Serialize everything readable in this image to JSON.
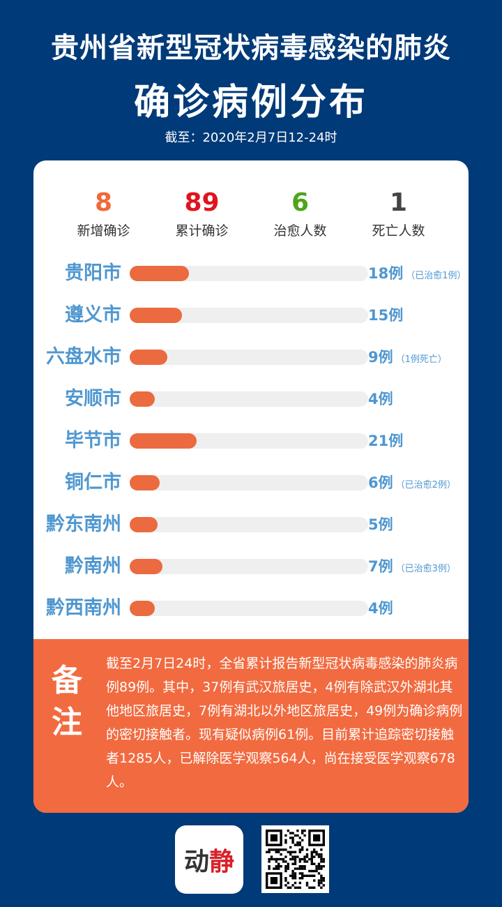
{
  "header": {
    "title_line1": "贵州省新型冠状病毒感染的肺炎",
    "title_line2": "确诊病例分布",
    "as_of": "截至：2020年2月7日12-24时"
  },
  "stats": [
    {
      "value": "8",
      "label": "新增确诊",
      "color": "#f06a3a"
    },
    {
      "value": "89",
      "label": "累计确诊",
      "color": "#e0141e"
    },
    {
      "value": "6",
      "label": "治愈人数",
      "color": "#4ea51b"
    },
    {
      "value": "1",
      "label": "死亡人数",
      "color": "#444444"
    }
  ],
  "chart_data": {
    "type": "bar",
    "orientation": "horizontal",
    "categories": [
      "贵阳市",
      "遵义市",
      "六盘水市",
      "安顺市",
      "毕节市",
      "铜仁市",
      "黔东南州",
      "黔南州",
      "黔西南州"
    ],
    "values": [
      18,
      15,
      9,
      4,
      21,
      6,
      5,
      7,
      4
    ],
    "value_labels": [
      "18例",
      "15例",
      "9例",
      "4例",
      "21例",
      "6例",
      "5例",
      "7例",
      "4例"
    ],
    "notes": [
      "（已治愈1例）",
      "",
      "（1例死亡）",
      "",
      "",
      "（已治愈2例）",
      "",
      "（已治愈3例）",
      ""
    ],
    "bar_color": "#ec6a3f",
    "track_color": "#efefef",
    "label_color": "#4f97d0"
  },
  "remark": {
    "heading": "备注",
    "text": "截至2月7日24时，全省累计报告新型冠状病毒感染的肺炎病例89例。其中，37例有武汉旅居史，4例有除武汉外湖北其他地区旅居史，7例有湖北以外地区旅居史，49例为确诊病例的密切接触者。现有疑似病例61例。目前累计追踪密切接触者1285人，已解除医学观察564人，尚在接受医学观察678人。"
  },
  "footer": {
    "logo_text": "动静"
  }
}
